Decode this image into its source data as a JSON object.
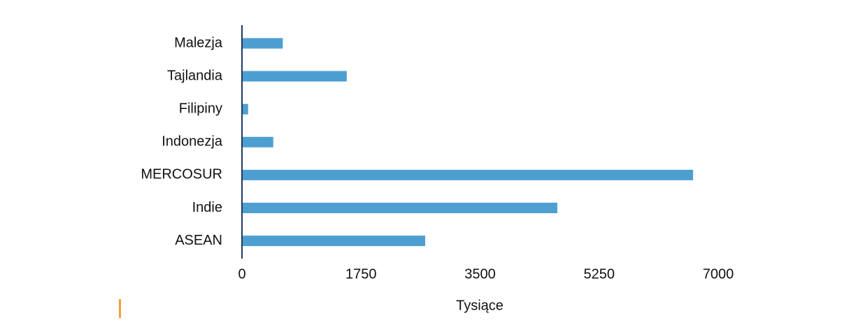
{
  "chart_data": {
    "type": "hbar",
    "categories": [
      "Malezja",
      "Tajlandia",
      "Filipiny",
      "Indonezja",
      "MERCOSUR",
      "Indie",
      "ASEAN"
    ],
    "values": [
      600,
      1540,
      90,
      460,
      6630,
      4635,
      2693
    ],
    "color": "#4e9fd1",
    "xlabel": "Tysiące",
    "xlim": [
      0,
      7000
    ],
    "xticks": [
      0,
      1750,
      3500,
      5250,
      7000
    ],
    "grid": false
  }
}
